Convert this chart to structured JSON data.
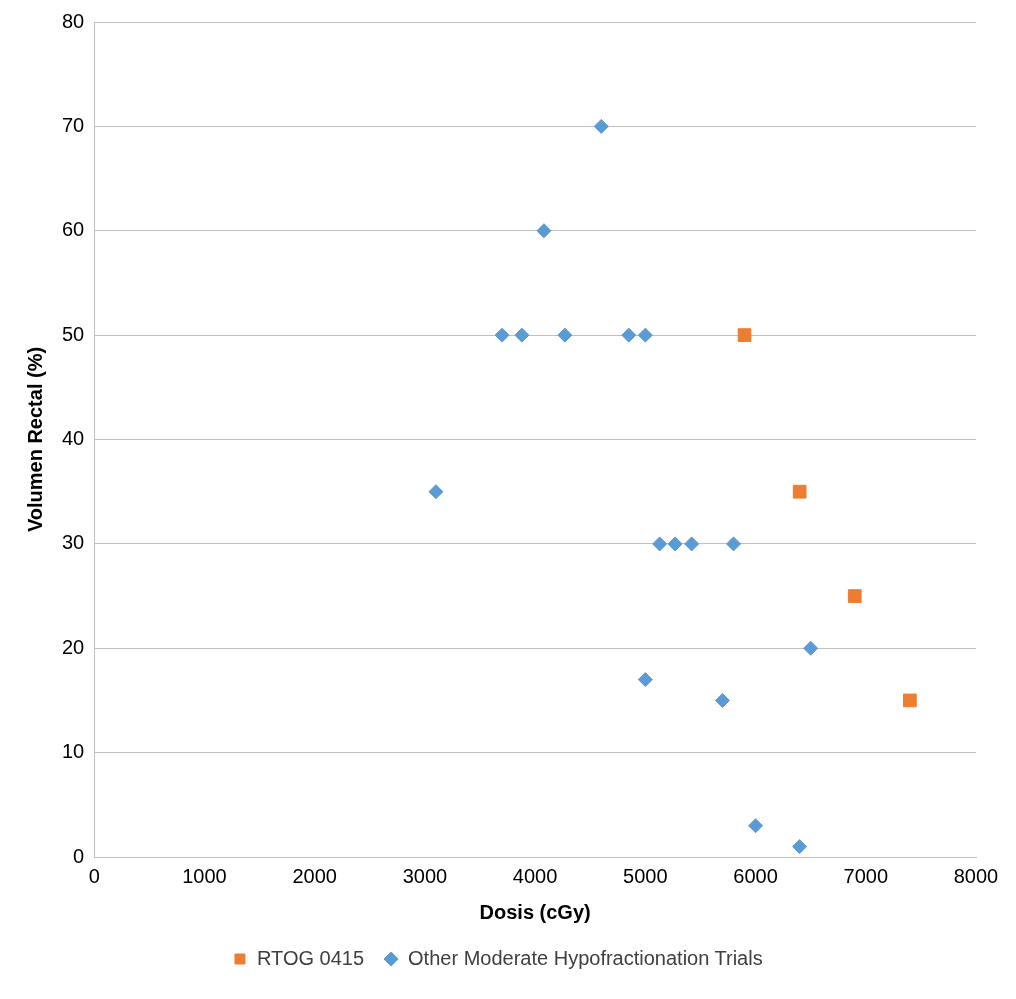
{
  "chart_data": {
    "type": "scatter",
    "xlabel": "Dosis (cGy)",
    "ylabel": "Volumen Rectal (%)",
    "xlim": [
      0,
      8000
    ],
    "xticks": [
      0,
      1000,
      2000,
      3000,
      4000,
      5000,
      6000,
      7000,
      8000
    ],
    "ylim": [
      0,
      80
    ],
    "yticks": [
      0,
      10,
      20,
      30,
      40,
      50,
      60,
      70,
      80
    ],
    "grid": "y",
    "legend": "bottom",
    "series": [
      {
        "name": "RTOG 0415",
        "color": "#ed7d31",
        "marker": "square",
        "x": [
          5900,
          6400,
          6900,
          7400
        ],
        "values": [
          50,
          35,
          25,
          15
        ]
      },
      {
        "name": "Other Moderate Hypofractionation Trials",
        "color": "#5b9bd5",
        "marker": "diamond",
        "x": [
          4600,
          4080,
          3700,
          3880,
          4270,
          4850,
          5000,
          3100,
          5130,
          5270,
          5420,
          5800,
          6500,
          5000,
          5700,
          6000,
          6400
        ],
        "values": [
          70,
          60,
          50,
          50,
          50,
          50,
          50,
          35,
          30,
          30,
          30,
          30,
          20,
          17,
          15,
          3,
          1
        ]
      }
    ]
  }
}
